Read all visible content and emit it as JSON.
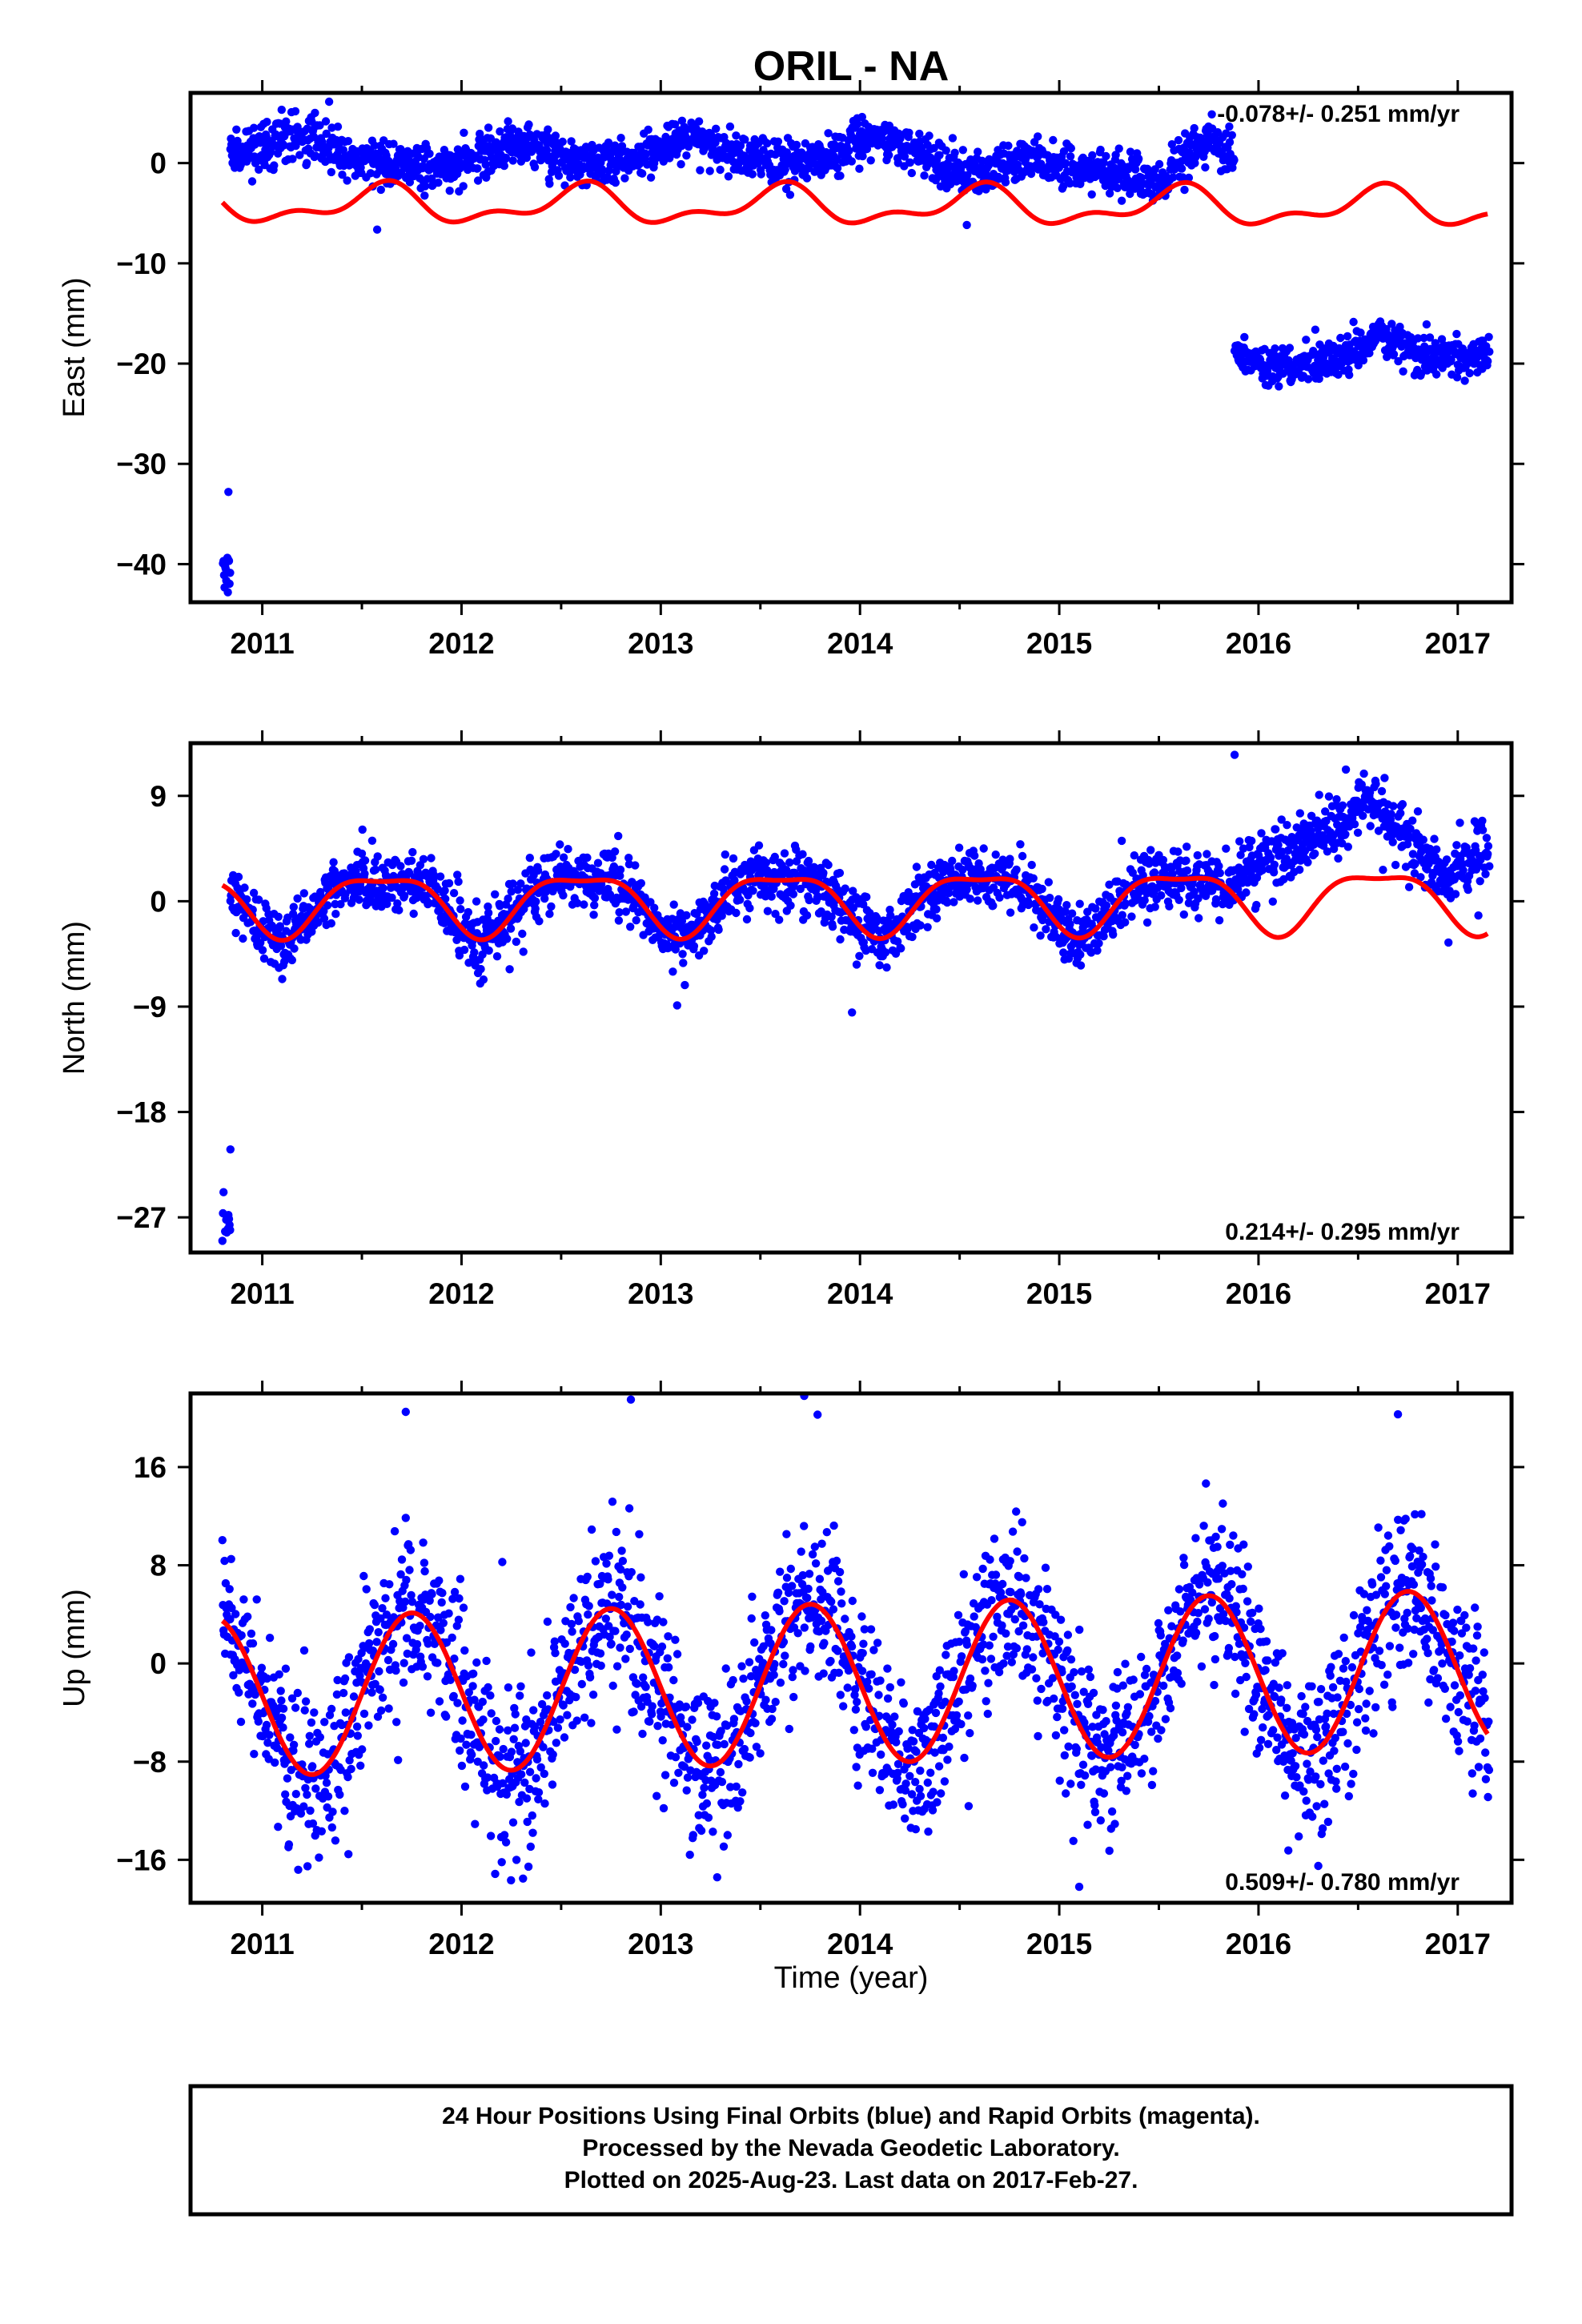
{
  "title": "ORIL - NA",
  "xlabel": "Time (year)",
  "caption": [
    "24 Hour Positions Using Final Orbits (blue) and Rapid Orbits (magenta).",
    "Processed by the Nevada Geodetic Laboratory.",
    "Plotted on 2025-Aug-23. Last data on 2017-Feb-27."
  ],
  "colors": {
    "data": "#0000ff",
    "model": "#ff0000",
    "frame": "#000000"
  },
  "chart_data": [
    {
      "type": "scatter",
      "ylabel": "East (mm)",
      "rate_label": "-0.078+/- 0.251 mm/yr",
      "rate_position": "top-right",
      "xlim": [
        2010.64,
        2017.27
      ],
      "ylim": [
        -43.8,
        7.0
      ],
      "x_ticks": [
        2011,
        2012,
        2013,
        2014,
        2015,
        2016,
        2017
      ],
      "y_ticks": [
        0,
        -10,
        -20,
        -30,
        -40
      ],
      "y_tick_labels": [
        "0",
        "−10",
        "−20",
        "−30",
        "−40"
      ],
      "data_start": 2010.81,
      "data_end": 2017.16,
      "series": [
        {
          "role": "daily positions (blue)",
          "segments": [
            {
              "x_range": [
                2010.8,
                2010.84
              ],
              "mean": -40.5,
              "scatter": 1.3,
              "trend": [],
              "description": "early outliers",
              "points": [
                [
                  2010.83,
                  -32.8
                ]
              ]
            },
            {
              "x_range": [
                2010.84,
                2015.88
              ],
              "mean": 0.8,
              "scatter": 1.1,
              "trend": [
                [
                  2010.85,
                  0.5
                ],
                [
                  2011.2,
                  3.0
                ],
                [
                  2011.5,
                  0.0
                ],
                [
                  2011.9,
                  -0.5
                ],
                [
                  2012.3,
                  2.0
                ],
                [
                  2012.6,
                  0.0
                ],
                [
                  2012.9,
                  0.5
                ],
                [
                  2013.1,
                  2.5
                ],
                [
                  2013.3,
                  1.5
                ],
                [
                  2013.6,
                  0.0
                ],
                [
                  2013.9,
                  0.8
                ],
                [
                  2014.1,
                  3.0
                ],
                [
                  2014.3,
                  0.5
                ],
                [
                  2014.6,
                  -1.0
                ],
                [
                  2014.9,
                  0.5
                ],
                [
                  2015.1,
                  -0.5
                ],
                [
                  2015.5,
                  -2.0
                ],
                [
                  2015.75,
                  2.5
                ],
                [
                  2015.88,
                  0.5
                ]
              ]
            },
            {
              "x_range": [
                2015.88,
                2017.16
              ],
              "mean": -19.0,
              "scatter": 1.0,
              "trend": [
                [
                  2015.88,
                  -19.0
                ],
                [
                  2016.1,
                  -20.5
                ],
                [
                  2016.4,
                  -19.5
                ],
                [
                  2016.6,
                  -17.5
                ],
                [
                  2016.85,
                  -19.5
                ],
                [
                  2017.16,
                  -19.0
                ]
              ]
            }
          ]
        },
        {
          "role": "seasonal model (red)",
          "x_range": [
            2010.8,
            2017.15
          ],
          "offset": -4.3,
          "annual": {
            "amplitude": 1.6,
            "peak": 2011.6
          },
          "semiannual": {
            "amplitude": 0.9,
            "peak": 2011.15
          },
          "slope": -0.05
        }
      ]
    },
    {
      "type": "scatter",
      "ylabel": "North (mm)",
      "rate_label": "0.214+/- 0.295 mm/yr",
      "rate_position": "bottom-right",
      "xlim": [
        2010.64,
        2017.27
      ],
      "ylim": [
        -30.0,
        13.5
      ],
      "x_ticks": [
        2011,
        2012,
        2013,
        2014,
        2015,
        2016,
        2017
      ],
      "y_ticks": [
        9,
        0,
        -9,
        -18,
        -27
      ],
      "y_tick_labels": [
        "9",
        "0",
        "−9",
        "−18",
        "−27"
      ],
      "data_start": 2010.81,
      "data_end": 2017.16,
      "series": [
        {
          "role": "daily positions (blue)",
          "segments": [
            {
              "x_range": [
                2010.8,
                2010.84
              ],
              "mean": -27.0,
              "scatter": 1.0,
              "trend": [],
              "description": "early outliers",
              "points": [
                [
                  2010.84,
                  -21.2
                ]
              ]
            },
            {
              "x_range": [
                2010.84,
                2015.88
              ],
              "mean": 0,
              "scatter": 1.3,
              "model_following": true,
              "points": [
                [
                  2013.96,
                  -9.5
                ],
                [
                  2015.88,
                  12.5
                ]
              ]
            },
            {
              "x_range": [
                2015.88,
                2017.16
              ],
              "mean": 5.0,
              "scatter": 1.3,
              "trend": [
                [
                  2015.88,
                  2.0
                ],
                [
                  2016.1,
                  4.0
                ],
                [
                  2016.3,
                  5.5
                ],
                [
                  2016.55,
                  8.5
                ],
                [
                  2016.7,
                  6.5
                ],
                [
                  2016.85,
                  3.0
                ],
                [
                  2016.95,
                  2.0
                ],
                [
                  2017.16,
                  4.5
                ]
              ]
            }
          ]
        },
        {
          "role": "seasonal model (red)",
          "x_range": [
            2010.8,
            2017.15
          ],
          "offset": 0.1,
          "annual": {
            "amplitude": 2.5,
            "peak": 2011.6
          },
          "semiannual": {
            "amplitude": 0.8,
            "peak": 2011.35
          },
          "slope": 0.05
        }
      ]
    },
    {
      "type": "scatter",
      "ylabel": "Up (mm)",
      "rate_label": "0.509+/- 0.780 mm/yr",
      "rate_position": "bottom-right",
      "xlim": [
        2010.64,
        2017.27
      ],
      "ylim": [
        -19.5,
        22.0
      ],
      "x_ticks": [
        2011,
        2012,
        2013,
        2014,
        2015,
        2016,
        2017
      ],
      "y_ticks": [
        16,
        8,
        0,
        -8,
        -16
      ],
      "y_tick_labels": [
        "16",
        "8",
        "0",
        "−8",
        "−16"
      ],
      "data_start": 2010.81,
      "data_end": 2017.16,
      "series": [
        {
          "role": "daily positions (blue)",
          "segments": [
            {
              "x_range": [
                2010.8,
                2017.16
              ],
              "mean": 0,
              "scatter": 3.3,
              "model_following": true,
              "points": [
                [
                  2011.72,
                  20.5
                ],
                [
                  2012.85,
                  21.5
                ],
                [
                  2013.72,
                  21.8
                ],
                [
                  2015.1,
                  -18.2
                ],
                [
                  2016.3,
                  -16.5
                ],
                [
                  2016.7,
                  20.3
                ]
              ]
            }
          ]
        },
        {
          "role": "seasonal model (red)",
          "x_range": [
            2010.8,
            2017.15
          ],
          "offset": -1.6,
          "annual": {
            "amplitude": 6.5,
            "peak": 2011.75
          },
          "semiannual": {
            "amplitude": 0,
            "peak": 2011.0
          },
          "slope": 0.35
        }
      ]
    }
  ]
}
